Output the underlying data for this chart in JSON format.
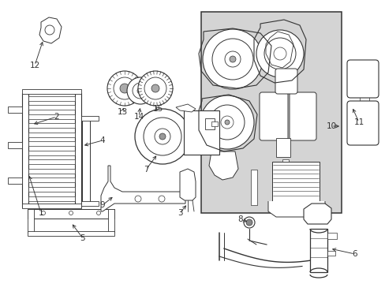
{
  "bg_color": "#ffffff",
  "line_color": "#333333",
  "gray_bg": "#d4d4d4",
  "figsize": [
    4.89,
    3.6
  ],
  "dpi": 100,
  "xlim": [
    0,
    489
  ],
  "ylim": [
    0,
    360
  ]
}
